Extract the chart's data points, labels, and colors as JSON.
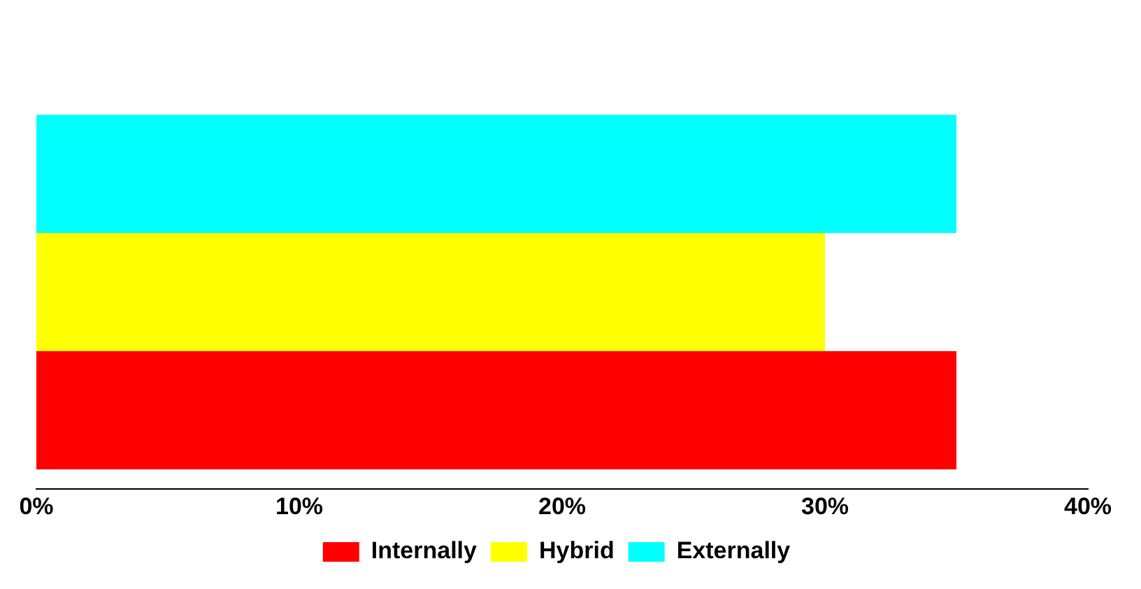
{
  "chart_data": {
    "type": "bar",
    "orientation": "horizontal",
    "categories": [
      null
    ],
    "series": [
      {
        "name": "Externally",
        "color": "#00ffff",
        "values": [
          35
        ]
      },
      {
        "name": "Hybrid",
        "color": "#ffff00",
        "values": [
          30
        ]
      },
      {
        "name": "Internally",
        "color": "#ff0000",
        "values": [
          35
        ]
      }
    ],
    "xlim": [
      0,
      40
    ],
    "xticks": [
      {
        "value": 0,
        "label": "0%"
      },
      {
        "value": 10,
        "label": "10%"
      },
      {
        "value": 20,
        "label": "20%"
      },
      {
        "value": 30,
        "label": "30%"
      },
      {
        "value": 40,
        "label": "40%"
      }
    ],
    "grid": false,
    "legend": "bottom"
  }
}
